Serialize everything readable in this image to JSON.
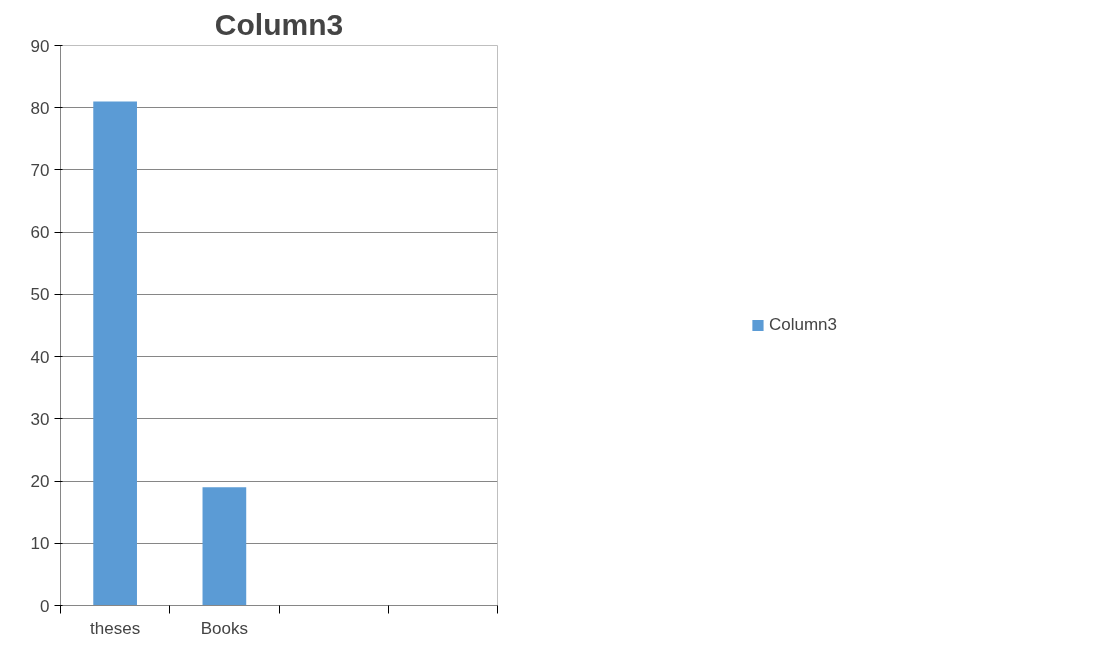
{
  "chart_data": {
    "type": "bar",
    "title": "Column3",
    "categories": [
      "theses",
      "Books",
      null,
      null
    ],
    "series": [
      {
        "name": "Column3",
        "color": "#5b9bd5",
        "values": [
          81,
          19,
          null,
          null
        ]
      }
    ],
    "ylim": [
      0,
      90
    ],
    "yticks": [
      0,
      10,
      20,
      30,
      40,
      50,
      60,
      70,
      80,
      90
    ],
    "grid": "y",
    "legend": "right"
  }
}
